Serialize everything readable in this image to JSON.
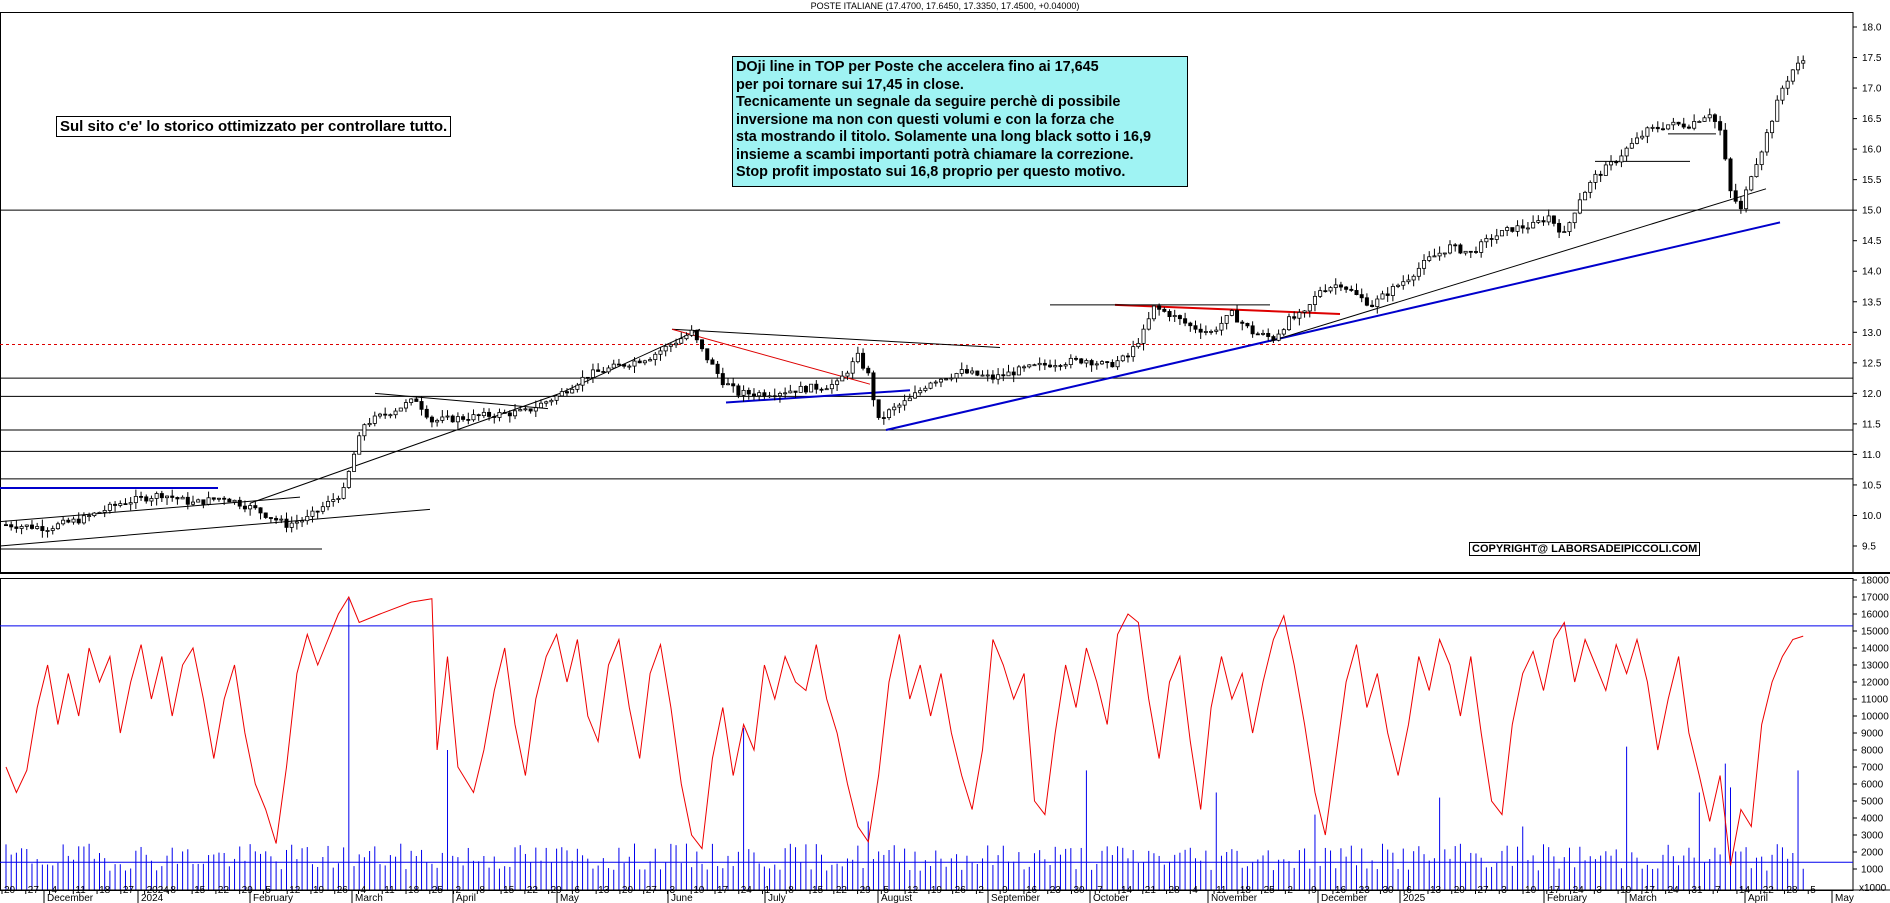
{
  "chart_data": [
    {
      "type": "candlestick",
      "title": "POSTE ITALIANE (17.4700, 17.6450, 17.3350, 17.4500, +0.04000)",
      "y_ticks": [
        "18.0",
        "17.5",
        "17.0",
        "16.5",
        "16.0",
        "15.5",
        "15.0",
        "14.5",
        "14.0",
        "13.5",
        "13.0",
        "12.5",
        "12.0",
        "11.5",
        "11.0",
        "10.5",
        "10.0",
        "9.5"
      ],
      "ylim": [
        9.2,
        18.2
      ],
      "close_path": [
        {
          "i": 0,
          "v": 9.85
        },
        {
          "i": 8,
          "v": 9.8
        },
        {
          "i": 15,
          "v": 9.95
        },
        {
          "i": 22,
          "v": 10.2
        },
        {
          "i": 30,
          "v": 10.35
        },
        {
          "i": 36,
          "v": 10.2
        },
        {
          "i": 42,
          "v": 10.3
        },
        {
          "i": 48,
          "v": 10.1
        },
        {
          "i": 54,
          "v": 9.85
        },
        {
          "i": 58,
          "v": 9.95
        },
        {
          "i": 62,
          "v": 10.2
        },
        {
          "i": 65,
          "v": 10.4
        },
        {
          "i": 67,
          "v": 11.0
        },
        {
          "i": 69,
          "v": 11.5
        },
        {
          "i": 74,
          "v": 11.7
        },
        {
          "i": 79,
          "v": 11.9
        },
        {
          "i": 82,
          "v": 11.55
        },
        {
          "i": 88,
          "v": 11.6
        },
        {
          "i": 94,
          "v": 11.65
        },
        {
          "i": 100,
          "v": 11.7
        },
        {
          "i": 106,
          "v": 11.95
        },
        {
          "i": 112,
          "v": 12.3
        },
        {
          "i": 118,
          "v": 12.45
        },
        {
          "i": 124,
          "v": 12.6
        },
        {
          "i": 128,
          "v": 12.8
        },
        {
          "i": 132,
          "v": 13.0
        },
        {
          "i": 134,
          "v": 12.7
        },
        {
          "i": 138,
          "v": 12.2
        },
        {
          "i": 141,
          "v": 12.0
        },
        {
          "i": 146,
          "v": 12.0
        },
        {
          "i": 151,
          "v": 12.05
        },
        {
          "i": 156,
          "v": 12.1
        },
        {
          "i": 160,
          "v": 12.15
        },
        {
          "i": 164,
          "v": 12.6
        },
        {
          "i": 166,
          "v": 12.3
        },
        {
          "i": 168,
          "v": 11.55
        },
        {
          "i": 170,
          "v": 11.7
        },
        {
          "i": 174,
          "v": 11.9
        },
        {
          "i": 178,
          "v": 12.2
        },
        {
          "i": 184,
          "v": 12.35
        },
        {
          "i": 190,
          "v": 12.25
        },
        {
          "i": 196,
          "v": 12.4
        },
        {
          "i": 202,
          "v": 12.5
        },
        {
          "i": 208,
          "v": 12.55
        },
        {
          "i": 212,
          "v": 12.45
        },
        {
          "i": 216,
          "v": 12.6
        },
        {
          "i": 219,
          "v": 13.0
        },
        {
          "i": 221,
          "v": 13.4
        },
        {
          "i": 224,
          "v": 13.3
        },
        {
          "i": 228,
          "v": 13.1
        },
        {
          "i": 232,
          "v": 13.0
        },
        {
          "i": 236,
          "v": 13.3
        },
        {
          "i": 240,
          "v": 13.0
        },
        {
          "i": 244,
          "v": 12.9
        },
        {
          "i": 247,
          "v": 13.2
        },
        {
          "i": 250,
          "v": 13.3
        },
        {
          "i": 253,
          "v": 13.7
        },
        {
          "i": 257,
          "v": 13.8
        },
        {
          "i": 260,
          "v": 13.6
        },
        {
          "i": 263,
          "v": 13.45
        },
        {
          "i": 266,
          "v": 13.65
        },
        {
          "i": 270,
          "v": 13.9
        },
        {
          "i": 274,
          "v": 14.2
        },
        {
          "i": 278,
          "v": 14.4
        },
        {
          "i": 282,
          "v": 14.3
        },
        {
          "i": 286,
          "v": 14.55
        },
        {
          "i": 290,
          "v": 14.7
        },
        {
          "i": 294,
          "v": 14.75
        },
        {
          "i": 297,
          "v": 14.9
        },
        {
          "i": 300,
          "v": 14.6
        },
        {
          "i": 303,
          "v": 15.2
        },
        {
          "i": 306,
          "v": 15.55
        },
        {
          "i": 309,
          "v": 15.75
        },
        {
          "i": 312,
          "v": 16.0
        },
        {
          "i": 316,
          "v": 16.3
        },
        {
          "i": 320,
          "v": 16.4
        },
        {
          "i": 324,
          "v": 16.4
        },
        {
          "i": 328,
          "v": 16.6
        },
        {
          "i": 330,
          "v": 16.3
        },
        {
          "i": 332,
          "v": 15.3
        },
        {
          "i": 334,
          "v": 15.0
        },
        {
          "i": 336,
          "v": 15.6
        },
        {
          "i": 338,
          "v": 16.0
        },
        {
          "i": 340,
          "v": 16.5
        },
        {
          "i": 342,
          "v": 17.0
        },
        {
          "i": 344,
          "v": 17.3
        },
        {
          "i": 346,
          "v": 17.45
        }
      ],
      "volume_y_ticks": [
        "18000",
        "17000",
        "16000",
        "15000",
        "14000",
        "13000",
        "12000",
        "11000",
        "10000",
        "9000",
        "8000",
        "7000",
        "6000",
        "5000",
        "4000",
        "3000",
        "2000",
        "1000"
      ],
      "volume_ylim": [
        0,
        18300
      ],
      "volume_note": "x1000",
      "volume_spikes": [
        {
          "i": 66,
          "v": 16900
        },
        {
          "i": 85,
          "v": 8000
        },
        {
          "i": 142,
          "v": 9300
        },
        {
          "i": 166,
          "v": 3800
        },
        {
          "i": 208,
          "v": 6800
        },
        {
          "i": 233,
          "v": 5500
        },
        {
          "i": 252,
          "v": 4200
        },
        {
          "i": 276,
          "v": 5200
        },
        {
          "i": 292,
          "v": 3500
        },
        {
          "i": 312,
          "v": 8200
        },
        {
          "i": 326,
          "v": 5500
        },
        {
          "i": 331,
          "v": 7200
        },
        {
          "i": 332,
          "v": 5800
        },
        {
          "i": 345,
          "v": 6800
        }
      ],
      "oscillator_path": [
        {
          "i": 0,
          "v": 7000
        },
        {
          "i": 2,
          "v": 5500
        },
        {
          "i": 4,
          "v": 6800
        },
        {
          "i": 6,
          "v": 10500
        },
        {
          "i": 8,
          "v": 13000
        },
        {
          "i": 10,
          "v": 9500
        },
        {
          "i": 12,
          "v": 12500
        },
        {
          "i": 14,
          "v": 10000
        },
        {
          "i": 16,
          "v": 14000
        },
        {
          "i": 18,
          "v": 12000
        },
        {
          "i": 20,
          "v": 13500
        },
        {
          "i": 22,
          "v": 9000
        },
        {
          "i": 24,
          "v": 12000
        },
        {
          "i": 26,
          "v": 14200
        },
        {
          "i": 28,
          "v": 11000
        },
        {
          "i": 30,
          "v": 13500
        },
        {
          "i": 32,
          "v": 10000
        },
        {
          "i": 34,
          "v": 13000
        },
        {
          "i": 36,
          "v": 14000
        },
        {
          "i": 38,
          "v": 11000
        },
        {
          "i": 40,
          "v": 7500
        },
        {
          "i": 42,
          "v": 11000
        },
        {
          "i": 44,
          "v": 13000
        },
        {
          "i": 46,
          "v": 9000
        },
        {
          "i": 48,
          "v": 6000
        },
        {
          "i": 50,
          "v": 4500
        },
        {
          "i": 52,
          "v": 2500
        },
        {
          "i": 54,
          "v": 7000
        },
        {
          "i": 56,
          "v": 12500
        },
        {
          "i": 58,
          "v": 14800
        },
        {
          "i": 60,
          "v": 13000
        },
        {
          "i": 62,
          "v": 14500
        },
        {
          "i": 64,
          "v": 16000
        },
        {
          "i": 66,
          "v": 17000
        },
        {
          "i": 68,
          "v": 15500
        },
        {
          "i": 72,
          "v": 16000
        },
        {
          "i": 78,
          "v": 16700
        },
        {
          "i": 82,
          "v": 16900
        },
        {
          "i": 83,
          "v": 8000
        },
        {
          "i": 85,
          "v": 13500
        },
        {
          "i": 87,
          "v": 7000
        },
        {
          "i": 90,
          "v": 5500
        },
        {
          "i": 92,
          "v": 8000
        },
        {
          "i": 94,
          "v": 11500
        },
        {
          "i": 96,
          "v": 14000
        },
        {
          "i": 98,
          "v": 9500
        },
        {
          "i": 100,
          "v": 6500
        },
        {
          "i": 102,
          "v": 11000
        },
        {
          "i": 104,
          "v": 13500
        },
        {
          "i": 106,
          "v": 14800
        },
        {
          "i": 108,
          "v": 12000
        },
        {
          "i": 110,
          "v": 14500
        },
        {
          "i": 112,
          "v": 10000
        },
        {
          "i": 114,
          "v": 8500
        },
        {
          "i": 116,
          "v": 13000
        },
        {
          "i": 118,
          "v": 14500
        },
        {
          "i": 120,
          "v": 10500
        },
        {
          "i": 122,
          "v": 7500
        },
        {
          "i": 124,
          "v": 12500
        },
        {
          "i": 126,
          "v": 14200
        },
        {
          "i": 128,
          "v": 10500
        },
        {
          "i": 130,
          "v": 6000
        },
        {
          "i": 132,
          "v": 3000
        },
        {
          "i": 134,
          "v": 2200
        },
        {
          "i": 136,
          "v": 7500
        },
        {
          "i": 138,
          "v": 10500
        },
        {
          "i": 140,
          "v": 6500
        },
        {
          "i": 142,
          "v": 9500
        },
        {
          "i": 144,
          "v": 8000
        },
        {
          "i": 146,
          "v": 13000
        },
        {
          "i": 148,
          "v": 11000
        },
        {
          "i": 150,
          "v": 13500
        },
        {
          "i": 152,
          "v": 12000
        },
        {
          "i": 154,
          "v": 11500
        },
        {
          "i": 156,
          "v": 14200
        },
        {
          "i": 158,
          "v": 11000
        },
        {
          "i": 160,
          "v": 9000
        },
        {
          "i": 162,
          "v": 6000
        },
        {
          "i": 164,
          "v": 3500
        },
        {
          "i": 166,
          "v": 2600
        },
        {
          "i": 168,
          "v": 6500
        },
        {
          "i": 170,
          "v": 12000
        },
        {
          "i": 172,
          "v": 14800
        },
        {
          "i": 174,
          "v": 11000
        },
        {
          "i": 176,
          "v": 13000
        },
        {
          "i": 178,
          "v": 10000
        },
        {
          "i": 180,
          "v": 12500
        },
        {
          "i": 182,
          "v": 9000
        },
        {
          "i": 184,
          "v": 6500
        },
        {
          "i": 186,
          "v": 4500
        },
        {
          "i": 188,
          "v": 8000
        },
        {
          "i": 190,
          "v": 14500
        },
        {
          "i": 192,
          "v": 13000
        },
        {
          "i": 194,
          "v": 11000
        },
        {
          "i": 196,
          "v": 12500
        },
        {
          "i": 198,
          "v": 5000
        },
        {
          "i": 200,
          "v": 4200
        },
        {
          "i": 202,
          "v": 9000
        },
        {
          "i": 204,
          "v": 13000
        },
        {
          "i": 206,
          "v": 10500
        },
        {
          "i": 208,
          "v": 14000
        },
        {
          "i": 210,
          "v": 12000
        },
        {
          "i": 212,
          "v": 9500
        },
        {
          "i": 214,
          "v": 14800
        },
        {
          "i": 216,
          "v": 16000
        },
        {
          "i": 218,
          "v": 15500
        },
        {
          "i": 220,
          "v": 11000
        },
        {
          "i": 222,
          "v": 7500
        },
        {
          "i": 224,
          "v": 12000
        },
        {
          "i": 226,
          "v": 13500
        },
        {
          "i": 228,
          "v": 8500
        },
        {
          "i": 230,
          "v": 4500
        },
        {
          "i": 232,
          "v": 10500
        },
        {
          "i": 234,
          "v": 13500
        },
        {
          "i": 236,
          "v": 11000
        },
        {
          "i": 238,
          "v": 12500
        },
        {
          "i": 240,
          "v": 9000
        },
        {
          "i": 242,
          "v": 12000
        },
        {
          "i": 244,
          "v": 14500
        },
        {
          "i": 246,
          "v": 15900
        },
        {
          "i": 248,
          "v": 13000
        },
        {
          "i": 250,
          "v": 9500
        },
        {
          "i": 252,
          "v": 5500
        },
        {
          "i": 254,
          "v": 3000
        },
        {
          "i": 256,
          "v": 7500
        },
        {
          "i": 258,
          "v": 12000
        },
        {
          "i": 260,
          "v": 14200
        },
        {
          "i": 262,
          "v": 10500
        },
        {
          "i": 264,
          "v": 12500
        },
        {
          "i": 266,
          "v": 9000
        },
        {
          "i": 268,
          "v": 6500
        },
        {
          "i": 270,
          "v": 9500
        },
        {
          "i": 272,
          "v": 13500
        },
        {
          "i": 274,
          "v": 11500
        },
        {
          "i": 276,
          "v": 14500
        },
        {
          "i": 278,
          "v": 13000
        },
        {
          "i": 280,
          "v": 10000
        },
        {
          "i": 282,
          "v": 13500
        },
        {
          "i": 284,
          "v": 9000
        },
        {
          "i": 286,
          "v": 5000
        },
        {
          "i": 288,
          "v": 4200
        },
        {
          "i": 290,
          "v": 9500
        },
        {
          "i": 292,
          "v": 12500
        },
        {
          "i": 294,
          "v": 13800
        },
        {
          "i": 296,
          "v": 11500
        },
        {
          "i": 298,
          "v": 14500
        },
        {
          "i": 300,
          "v": 15500
        },
        {
          "i": 302,
          "v": 12000
        },
        {
          "i": 304,
          "v": 14500
        },
        {
          "i": 306,
          "v": 13000
        },
        {
          "i": 308,
          "v": 11500
        },
        {
          "i": 310,
          "v": 14200
        },
        {
          "i": 312,
          "v": 12500
        },
        {
          "i": 314,
          "v": 14500
        },
        {
          "i": 316,
          "v": 12000
        },
        {
          "i": 318,
          "v": 8000
        },
        {
          "i": 320,
          "v": 11000
        },
        {
          "i": 322,
          "v": 13500
        },
        {
          "i": 324,
          "v": 9000
        },
        {
          "i": 326,
          "v": 6500
        },
        {
          "i": 328,
          "v": 3800
        },
        {
          "i": 330,
          "v": 6500
        },
        {
          "i": 332,
          "v": 1200
        },
        {
          "i": 334,
          "v": 4500
        },
        {
          "i": 336,
          "v": 3500
        },
        {
          "i": 338,
          "v": 9500
        },
        {
          "i": 340,
          "v": 12000
        },
        {
          "i": 342,
          "v": 13500
        },
        {
          "i": 344,
          "v": 14500
        },
        {
          "i": 346,
          "v": 14700
        }
      ],
      "volume_reference_levels": [
        15300,
        1400
      ],
      "x_day_ticks": [
        "20",
        "27",
        "4",
        "11",
        "18",
        "27",
        "2024",
        "8",
        "15",
        "22",
        "29",
        "5",
        "12",
        "19",
        "26",
        "4",
        "11",
        "18",
        "25",
        "2",
        "8",
        "15",
        "22",
        "29",
        "6",
        "13",
        "20",
        "27",
        "3",
        "10",
        "17",
        "24",
        "1",
        "8",
        "15",
        "22",
        "29",
        "5",
        "12",
        "19",
        "26",
        "2",
        "9",
        "16",
        "23",
        "30",
        "7",
        "14",
        "21",
        "28",
        "4",
        "11",
        "18",
        "25",
        "2",
        "9",
        "16",
        "23",
        "30",
        "6",
        "13",
        "20",
        "27",
        "3",
        "10",
        "17",
        "24",
        "3",
        "10",
        "17",
        "24",
        "31",
        "7",
        "14",
        "22",
        "28",
        "5"
      ],
      "x_month_labels": [
        "December",
        "2024",
        "February",
        "March",
        "April",
        "May",
        "June",
        "July",
        "August",
        "September",
        "October",
        "November",
        "December",
        "2025",
        "February",
        "March",
        "April",
        "May"
      ]
    }
  ],
  "annotations": {
    "left_note": "Sul sito c'e' lo storico ottimizzato per controllare tutto.",
    "box_lines": [
      "DOji line in TOP per Poste che accelera fino ai 17,645",
      "per poi tornare sui 17,45 in close.",
      "Tecnicamente un segnale da seguire perchè di possibile",
      "inversione ma non con questi volumi e con la forza che",
      "sta mostrando il titolo. Solamente una long black sotto i 16,9",
      "insieme a scambi importanti potrà chiamare la correzione.",
      "Stop profit impostato sui 16,8 proprio per questo motivo."
    ],
    "copyright": "COPYRIGHT@ LABORSADEIPICCOLI.COM"
  },
  "colors": {
    "price": "#000000",
    "trendline_blue": "#0000cc",
    "trendline_red": "#dd0000",
    "oscillator": "#ee0000",
    "volume": "#0000ee",
    "box_bg": "#9ff3f3"
  }
}
